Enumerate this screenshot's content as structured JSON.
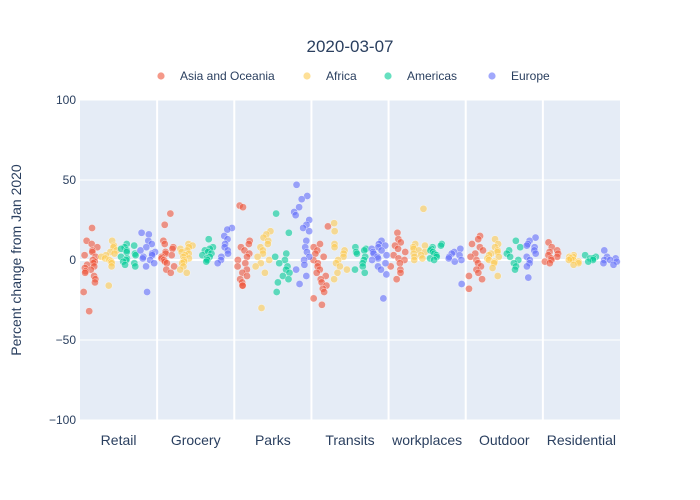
{
  "chart_data": {
    "type": "scatter",
    "title": "2020-03-07",
    "ylabel": "Percent change from Jan 2020",
    "xlabel": "",
    "ylim": [
      -100,
      100
    ],
    "yticks": [
      100,
      50,
      0,
      -50,
      -100
    ],
    "ytick_labels": [
      "100",
      "50",
      "0",
      "−50",
      "−100"
    ],
    "grid": true,
    "legend_position": "top",
    "categories": [
      "Retail",
      "Grocery",
      "Parks",
      "Transits",
      "workplaces",
      "Outdoor",
      "Residential"
    ],
    "series": [
      {
        "name": "Asia and Oceania",
        "color": "#EF553B",
        "values": [
          [
            20,
            12,
            10,
            8,
            6,
            5,
            3,
            2,
            0,
            -1,
            -2,
            -3,
            -4,
            -5,
            -6,
            -7,
            -8,
            -10,
            -12,
            -14,
            -20,
            -32
          ],
          [
            29,
            22,
            12,
            10,
            8,
            7,
            5,
            4,
            3,
            2,
            1,
            0,
            -1,
            -2,
            -4,
            -6,
            -8
          ],
          [
            34,
            33,
            12,
            10,
            8,
            6,
            4,
            2,
            0,
            -2,
            -4,
            -6,
            -8,
            -10,
            -12,
            -14,
            -16,
            -16
          ],
          [
            21,
            10,
            8,
            6,
            4,
            2,
            0,
            -2,
            -4,
            -6,
            -8,
            -10,
            -12,
            -14,
            -16,
            -18,
            -20,
            -24,
            -28
          ],
          [
            17,
            13,
            11,
            9,
            7,
            5,
            3,
            1,
            0,
            -2,
            -4,
            -6,
            -8,
            -12
          ],
          [
            15,
            13,
            10,
            8,
            6,
            4,
            2,
            0,
            -2,
            -4,
            -6,
            -8,
            -10,
            -12,
            -18
          ],
          [
            11,
            8,
            6,
            5,
            4,
            3,
            2,
            1,
            0,
            -1,
            -2
          ]
        ]
      },
      {
        "name": "Africa",
        "color": "#FECB52",
        "values": [
          [
            12,
            9,
            8,
            6,
            5,
            4,
            3,
            2,
            1,
            0,
            -1,
            -2,
            -4,
            -16
          ],
          [
            10,
            9,
            8,
            7,
            6,
            5,
            4,
            3,
            2,
            1,
            0,
            -1,
            -2,
            -4,
            -6,
            -8
          ],
          [
            18,
            16,
            14,
            12,
            10,
            8,
            6,
            4,
            2,
            0,
            -2,
            -4,
            -8,
            -30
          ],
          [
            23,
            18,
            10,
            8,
            6,
            4,
            2,
            0,
            -2,
            -4,
            -6,
            -8,
            -12
          ],
          [
            32,
            10,
            9,
            8,
            7,
            6,
            5,
            4,
            3,
            2,
            1,
            0
          ],
          [
            13,
            10,
            8,
            6,
            5,
            4,
            3,
            2,
            1,
            0,
            -1,
            -2,
            -5,
            -10
          ],
          [
            3,
            2,
            2,
            1,
            1,
            0,
            0,
            -1,
            -2,
            -3
          ]
        ]
      },
      {
        "name": "Americas",
        "color": "#00CC96",
        "values": [
          [
            10,
            9,
            8,
            7,
            6,
            5,
            4,
            3,
            2,
            1,
            0,
            -1,
            -2,
            -3,
            -4
          ],
          [
            13,
            8,
            7,
            6,
            5,
            4,
            3,
            2,
            1,
            0,
            -1
          ],
          [
            29,
            17,
            4,
            2,
            0,
            -2,
            -4,
            -6,
            -8,
            -10,
            -12,
            -14,
            -20
          ],
          [
            8,
            7,
            6,
            5,
            4,
            2,
            0,
            -2,
            -4,
            -6,
            -8
          ],
          [
            10,
            9,
            8,
            7,
            6,
            5,
            4,
            3,
            2,
            1,
            0
          ],
          [
            12,
            8,
            6,
            4,
            2,
            0,
            -2,
            -4,
            -6
          ],
          [
            3,
            2,
            1,
            1,
            0,
            -1
          ]
        ]
      },
      {
        "name": "Europe",
        "color": "#636EFA",
        "values": [
          [
            17,
            16,
            12,
            10,
            8,
            6,
            5,
            4,
            3,
            2,
            1,
            0,
            -2,
            -4,
            -20
          ],
          [
            20,
            19,
            15,
            13,
            10,
            8,
            6,
            4,
            2,
            0,
            -2
          ],
          [
            47,
            40,
            38,
            33,
            30,
            28,
            25,
            22,
            20,
            18,
            12,
            8,
            5,
            2,
            0,
            -3,
            -6,
            -10,
            -15
          ],
          [
            12,
            10,
            9,
            8,
            7,
            6,
            5,
            4,
            3,
            2,
            1,
            0,
            -2,
            -4,
            -6,
            -9,
            -24
          ],
          [
            7,
            5,
            4,
            3,
            2,
            1,
            0,
            -1,
            -15
          ],
          [
            14,
            12,
            10,
            9,
            8,
            6,
            4,
            2,
            0,
            -2,
            -4,
            -11
          ],
          [
            6,
            2,
            1,
            0,
            0,
            -1,
            -2,
            -3
          ]
        ]
      }
    ]
  }
}
